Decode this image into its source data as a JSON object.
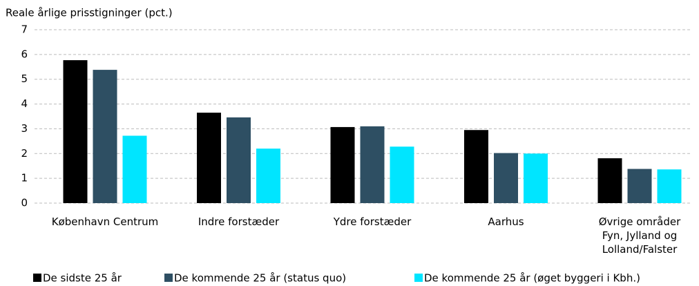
{
  "chart_data": {
    "type": "bar",
    "title": "Reale årlige prisstigninger (pct.)",
    "categories": [
      "København Centrum",
      "Indre forstæder",
      "Ydre forstæder",
      "Aarhus",
      "Øvrige områder\nFyn, Jylland og\nLolland/Falster"
    ],
    "series": [
      {
        "name": "De sidste 25 år",
        "color": "#000000",
        "values": [
          5.77,
          3.65,
          3.07,
          2.95,
          1.81
        ]
      },
      {
        "name": "De kommende 25 år (status quo)",
        "color": "#2e4f63",
        "values": [
          5.38,
          3.46,
          3.1,
          2.02,
          1.38
        ]
      },
      {
        "name": "De kommende 25 år (øget byggeri i Kbh.)",
        "color": "#00e5ff",
        "values": [
          2.72,
          2.2,
          2.28,
          2.0,
          1.36
        ]
      }
    ],
    "ylim": [
      0,
      7
    ],
    "yticks": [
      0,
      1,
      2,
      3,
      4,
      5,
      6,
      7
    ],
    "grid": true,
    "legend": "bottom"
  }
}
